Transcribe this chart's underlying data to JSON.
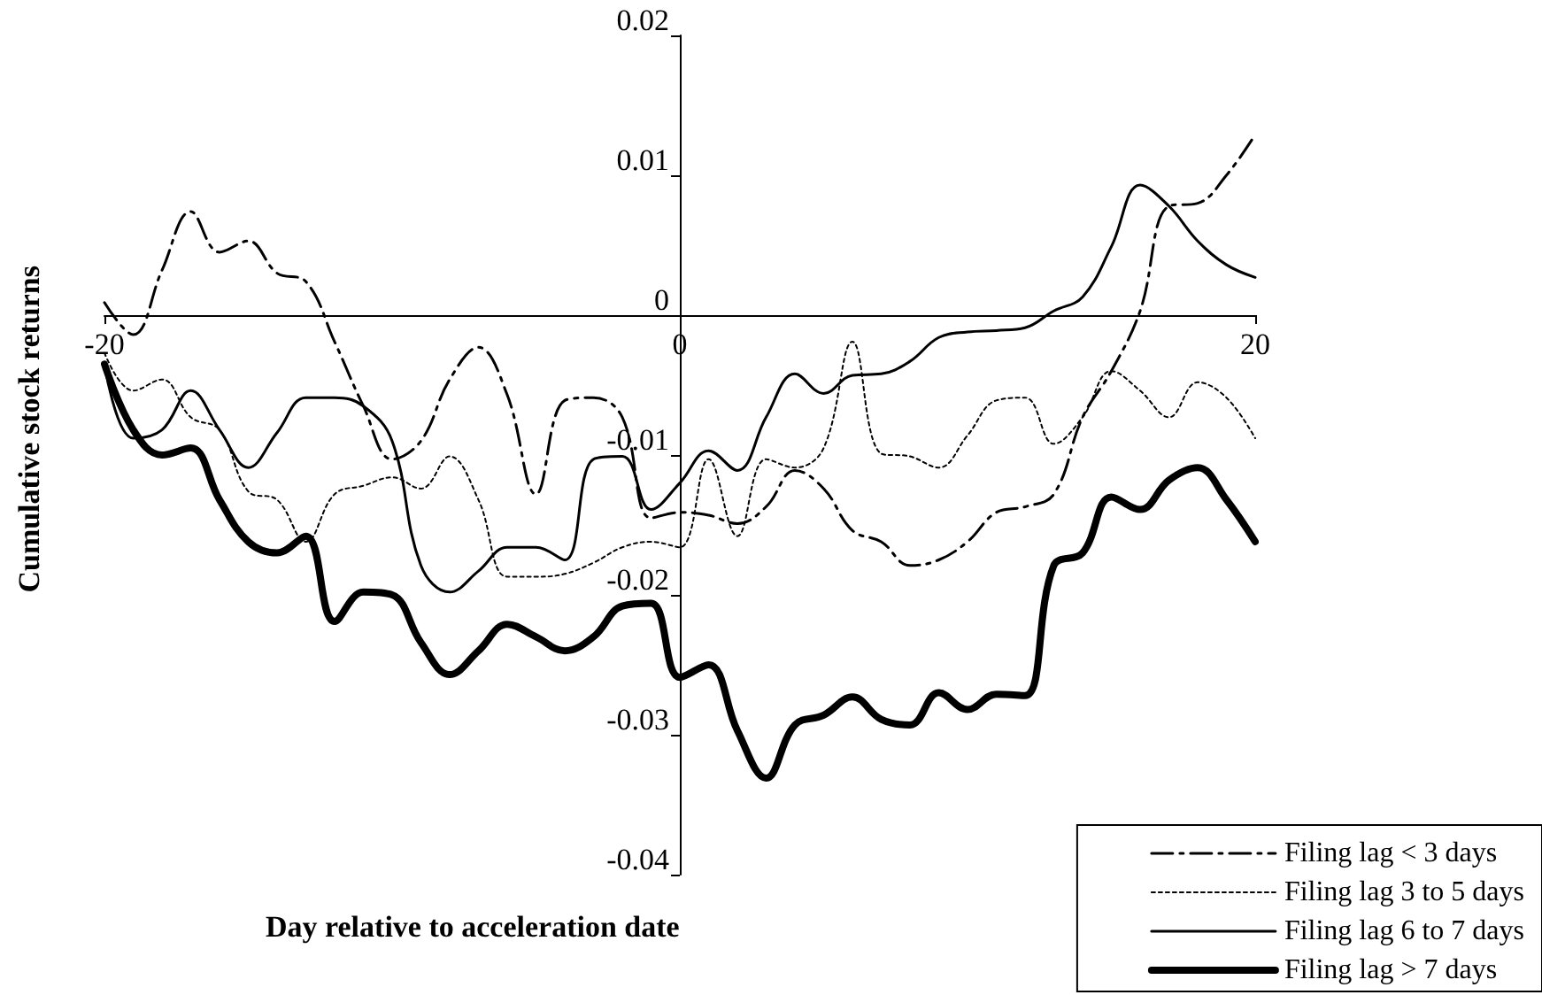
{
  "chart_data": {
    "type": "line",
    "xlabel": "Day relative to acceleration date",
    "ylabel": "Cumulative stock returns",
    "x": [
      -20,
      -19,
      -18,
      -17,
      -16,
      -15,
      -14,
      -13,
      -12,
      -11,
      -10,
      -9,
      -8,
      -7,
      -6,
      -5,
      -4,
      -3,
      -2,
      -1,
      0,
      1,
      2,
      3,
      4,
      5,
      6,
      7,
      8,
      9,
      10,
      11,
      12,
      13,
      14,
      15,
      16,
      17,
      18,
      19,
      20
    ],
    "series": [
      {
        "name": "Filing lag < 3 days",
        "color": "#000000",
        "line_style": "dashed",
        "values": [
          0.0009,
          -0.0014,
          0.0032,
          0.0074,
          0.0045,
          0.0053,
          0.003,
          0.0024,
          -0.0019,
          -0.0065,
          -0.0103,
          -0.009,
          -0.0046,
          -0.0023,
          -0.0057,
          -0.0128,
          -0.0061,
          -0.0059,
          -0.0073,
          -0.0145,
          -0.0141,
          -0.0143,
          -0.0149,
          -0.0137,
          -0.0111,
          -0.0124,
          -0.0154,
          -0.0162,
          -0.0179,
          -0.0175,
          -0.0162,
          -0.0141,
          -0.0137,
          -0.0128,
          -0.0073,
          -0.004,
          0.0003,
          0.0078,
          0.008,
          0.01,
          0.0129
        ]
      },
      {
        "name": "Filing lag 3 to 5 days",
        "color": "#000000",
        "line_style": "dotted",
        "values": [
          -0.0027,
          -0.0054,
          -0.0046,
          -0.0073,
          -0.0082,
          -0.0126,
          -0.0132,
          -0.0162,
          -0.0128,
          -0.0122,
          -0.0116,
          -0.0124,
          -0.0101,
          -0.0132,
          -0.0187,
          -0.0187,
          -0.0185,
          -0.0177,
          -0.0166,
          -0.0162,
          -0.0166,
          -0.0103,
          -0.0158,
          -0.0103,
          -0.0109,
          -0.0095,
          -0.0019,
          -0.0099,
          -0.0101,
          -0.0109,
          -0.0086,
          -0.0061,
          -0.0059,
          -0.0092,
          -0.0073,
          -0.004,
          -0.0054,
          -0.0073,
          -0.0048,
          -0.0059,
          -0.0088
        ]
      },
      {
        "name": "Filing lag 6 to 7 days",
        "color": "#000000",
        "line_style": "solid",
        "values": [
          -0.0035,
          -0.0088,
          -0.0082,
          -0.0054,
          -0.0082,
          -0.0109,
          -0.0084,
          -0.0059,
          -0.0059,
          -0.0065,
          -0.009,
          -0.0179,
          -0.0198,
          -0.0183,
          -0.0166,
          -0.0166,
          -0.0175,
          -0.0103,
          -0.0101,
          -0.0139,
          -0.012,
          -0.0097,
          -0.0111,
          -0.0073,
          -0.0042,
          -0.0056,
          -0.0043,
          -0.0042,
          -0.0033,
          -0.0016,
          -0.0012,
          -0.0011,
          -0.0009,
          0.0003,
          0.0013,
          0.0049,
          0.0093,
          0.0078,
          0.0053,
          0.0036,
          0.0027
        ]
      },
      {
        "name": "Filing lag > 7 days",
        "color": "#000000",
        "line_style": "solid",
        "values": [
          -0.0035,
          -0.0082,
          -0.01,
          -0.0095,
          -0.0132,
          -0.0162,
          -0.017,
          -0.0158,
          -0.0219,
          -0.0198,
          -0.02,
          -0.0234,
          -0.0257,
          -0.024,
          -0.0221,
          -0.023,
          -0.024,
          -0.023,
          -0.0208,
          -0.0206,
          -0.0259,
          -0.025,
          -0.0297,
          -0.0331,
          -0.0293,
          -0.0286,
          -0.0273,
          -0.0289,
          -0.0293,
          -0.027,
          -0.0282,
          -0.0271,
          -0.0272,
          -0.0179,
          -0.017,
          -0.013,
          -0.0139,
          -0.0118,
          -0.0109,
          -0.0132,
          -0.0162
        ]
      }
    ],
    "xlim": [
      -20,
      20
    ],
    "xticks": [
      -20,
      0,
      20
    ],
    "ylim": [
      -0.04,
      0.02
    ],
    "yticks": [
      -0.04,
      -0.03,
      -0.02,
      -0.01,
      0,
      0.01,
      0.02
    ],
    "legend": "bottom right",
    "marker": "none"
  }
}
